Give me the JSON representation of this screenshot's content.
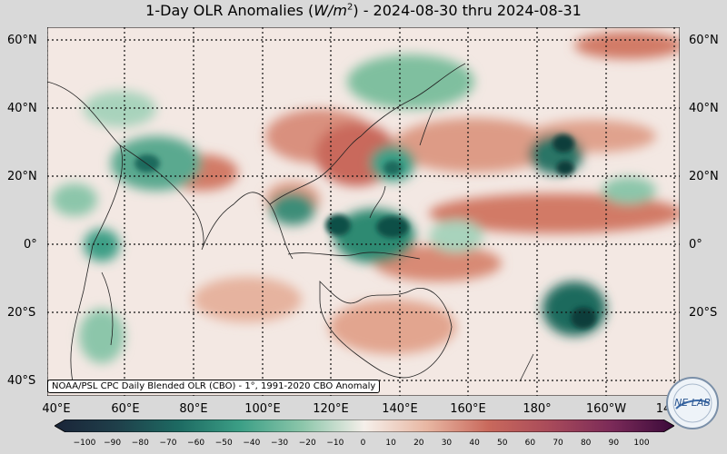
{
  "title_prefix": "1-Day OLR Anomalies (",
  "title_unit": "W/m",
  "title_unit_sup": "2",
  "title_suffix": ") - 2024-08-30 thru 2024-08-31",
  "lat_labels": [
    "60°N",
    "40°N",
    "20°N",
    "0°",
    "20°S",
    "40°S"
  ],
  "lon_labels": [
    "40°E",
    "60°E",
    "80°E",
    "100°E",
    "120°E",
    "140°E",
    "160°E",
    "180°",
    "160°W",
    "14"
  ],
  "credit": "NOAA/PSL CPC Daily Blended OLR (CBO) - 1°, 1991-2020 CBO Anomaly",
  "colorbar_ticks": [
    "−100",
    "−90",
    "−80",
    "−70",
    "−60",
    "−50",
    "−40",
    "−30",
    "−20",
    "−10",
    "0",
    "10",
    "20",
    "30",
    "40",
    "50",
    "60",
    "70",
    "80",
    "90",
    "100"
  ],
  "logo_text": "NE LAB",
  "colors": {
    "negative_strong": "#0b3d3a",
    "negative_mid": "#3c9f86",
    "negative_light": "#b9dcc8",
    "neutral": "#f5efea",
    "positive_light": "#e8b7a3",
    "positive_mid": "#c9695c",
    "positive_strong": "#6a1b4d"
  }
}
